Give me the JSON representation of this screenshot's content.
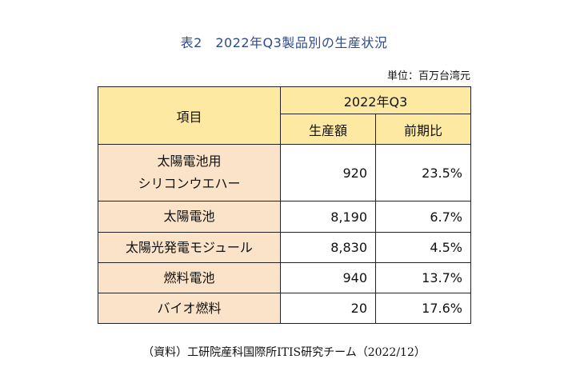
{
  "title": "表2　2022年Q3製品別の生産状況",
  "unit": "単位：百万台湾元",
  "table": {
    "header": {
      "item": "項目",
      "period": "2022年Q3",
      "col_production": "生産額",
      "col_yoy": "前期比"
    },
    "rows": [
      {
        "item_line1": "太陽電池用",
        "item_line2": "シリコンウエハー",
        "production": "920",
        "yoy": "23.5%"
      },
      {
        "item": "太陽電池",
        "production": "8,190",
        "yoy": "6.7%"
      },
      {
        "item": "太陽光発電モジュール",
        "production": "8,830",
        "yoy": "4.5%"
      },
      {
        "item": "燃料電池",
        "production": "940",
        "yoy": "13.7%"
      },
      {
        "item": "バイオ燃料",
        "production": "20",
        "yoy": "17.6%"
      }
    ]
  },
  "source": "（資料）工研院産科国際所ITIS研究チーム（2022/12）",
  "colors": {
    "title": "#2f4a8c",
    "header_bg": "#fde9a2",
    "row_label_bg": "#fbe3c9"
  }
}
